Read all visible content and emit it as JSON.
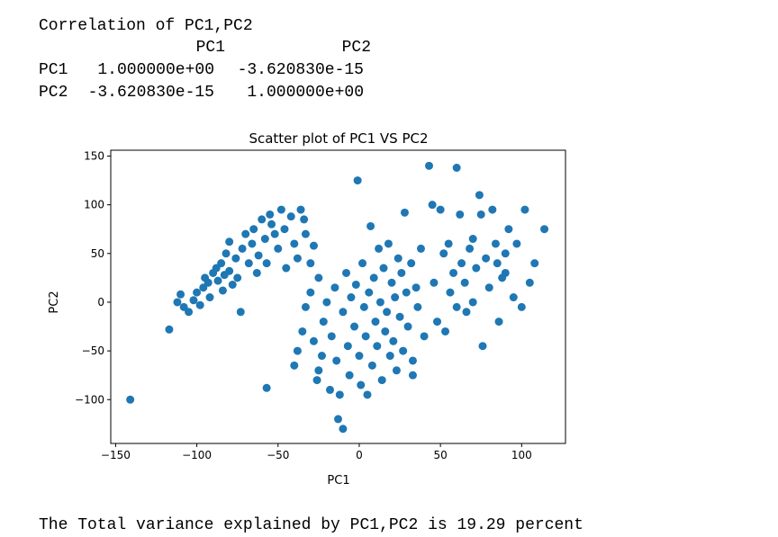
{
  "correlation": {
    "title": "Correlation of PC1,PC2",
    "columns": [
      "PC1",
      "PC2"
    ],
    "rows": [
      {
        "label": "PC1",
        "values": [
          "1.000000e+00",
          "-3.620830e-15"
        ]
      },
      {
        "label": "PC2",
        "values": [
          "-3.620830e-15",
          "1.000000e+00"
        ]
      }
    ]
  },
  "chart_data": {
    "type": "scatter",
    "title": "Scatter plot of PC1 VS PC2",
    "x_label": "PC1",
    "y_label": "PC2",
    "color": "#1f77b4",
    "xlim": [
      -153,
      127
    ],
    "ylim": [
      -145,
      156
    ],
    "xticks": [
      {
        "value": -150,
        "label": "−150"
      },
      {
        "value": -100,
        "label": "−100"
      },
      {
        "value": -50,
        "label": "−50"
      },
      0,
      50,
      100
    ],
    "yticks": [
      {
        "value": -100,
        "label": "−100"
      },
      {
        "value": -50,
        "label": "−50"
      },
      0,
      50,
      100,
      150
    ],
    "x": [
      -141,
      -117,
      -112,
      -110,
      -108,
      -105,
      -102,
      -100,
      -98,
      -96,
      -95,
      -93,
      -92,
      -90,
      -88,
      -87,
      -85,
      -84,
      -83,
      -82,
      -80,
      -80,
      -78,
      -76,
      -75,
      -73,
      -72,
      -70,
      -68,
      -66,
      -65,
      -63,
      -62,
      -60,
      -58,
      -57,
      -55,
      -54,
      -52,
      -50,
      -48,
      -46,
      -57,
      -45,
      -42,
      -40,
      -38,
      -36,
      -34,
      -33,
      -28,
      -25,
      -30,
      -40,
      -38,
      -35,
      -33,
      -30,
      -28,
      -26,
      -25,
      -23,
      -22,
      -20,
      -18,
      -17,
      -15,
      -14,
      -13,
      -12,
      -10,
      -10,
      -8,
      -7,
      -6,
      -5,
      -3,
      -2,
      -1,
      0,
      1,
      2,
      3,
      4,
      5,
      6,
      7,
      8,
      9,
      10,
      11,
      12,
      13,
      14,
      15,
      16,
      17,
      18,
      19,
      20,
      21,
      22,
      23,
      24,
      25,
      26,
      27,
      28,
      29,
      30,
      32,
      33,
      35,
      36,
      38,
      40,
      33,
      43,
      45,
      46,
      48,
      50,
      52,
      53,
      55,
      56,
      58,
      60,
      60,
      62,
      63,
      65,
      66,
      68,
      70,
      72,
      74,
      75,
      76,
      78,
      80,
      82,
      84,
      86,
      88,
      90,
      92,
      95,
      97,
      100,
      102,
      108,
      114,
      105,
      85,
      90,
      70
    ],
    "y": [
      -100,
      -28,
      0,
      8,
      -5,
      -10,
      2,
      10,
      -3,
      15,
      25,
      20,
      5,
      30,
      35,
      22,
      40,
      12,
      28,
      50,
      32,
      62,
      18,
      45,
      25,
      -10,
      55,
      70,
      40,
      60,
      75,
      30,
      48,
      85,
      65,
      40,
      90,
      80,
      70,
      55,
      95,
      75,
      -88,
      35,
      88,
      60,
      45,
      95,
      85,
      70,
      58,
      25,
      40,
      -65,
      -50,
      -30,
      -5,
      10,
      -40,
      -80,
      -70,
      -55,
      -20,
      0,
      -90,
      -35,
      15,
      -60,
      -120,
      -95,
      -130,
      -10,
      30,
      -45,
      -75,
      5,
      -25,
      18,
      125,
      -55,
      -85,
      40,
      -5,
      -35,
      -95,
      10,
      78,
      -65,
      25,
      -20,
      -45,
      55,
      0,
      -80,
      35,
      -30,
      -10,
      60,
      -55,
      20,
      -40,
      5,
      -70,
      45,
      -15,
      30,
      -50,
      92,
      10,
      -25,
      40,
      -60,
      15,
      -5,
      55,
      -35,
      -75,
      140,
      100,
      20,
      -20,
      95,
      50,
      -30,
      60,
      10,
      30,
      138,
      -5,
      90,
      40,
      20,
      -10,
      55,
      0,
      35,
      110,
      90,
      -45,
      45,
      15,
      95,
      60,
      -20,
      25,
      50,
      75,
      5,
      60,
      -5,
      95,
      40,
      75,
      20,
      40,
      30,
      65
    ]
  },
  "footer": "The Total variance explained by PC1,PC2 is 19.29 percent"
}
